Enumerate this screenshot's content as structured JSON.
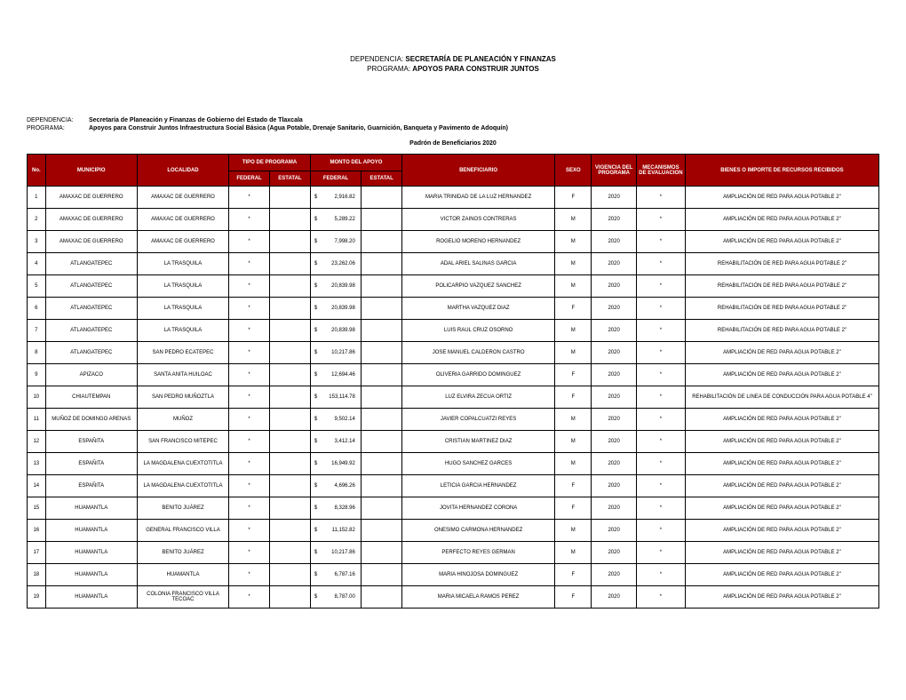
{
  "header": {
    "dependencia_label": "DEPENDENCIA:",
    "dependencia_value": "SECRETARÍA DE PLANEACIÓN Y FINANZAS",
    "programa_label": "PROGRAMA:",
    "programa_value": "APOYOS PARA CONSTRUIR JUNTOS"
  },
  "meta": {
    "dependencia_k": "DEPENDENCIA:",
    "dependencia_v": "Secretaría de Planeación y Finanzas de Gobierno del Estado de Tlaxcala",
    "programa_k": "PROGRAMA:",
    "programa_v": "Apoyos para Construir Juntos Infraestructura Social Básica (Agua Potable, Drenaje Sanitario, Guarnición, Banqueta y Pavimento de Adoquín)",
    "padron": "Padrón de Beneficiarios 2020"
  },
  "columns": {
    "no": "No.",
    "municipio": "MUNICIPIO",
    "localidad": "LOCALIDAD",
    "tipo_programa": "TIPO DE PROGRAMA",
    "monto_apoyo": "MONTO DEL APOYO",
    "federal": "FEDERAL",
    "estatal": "ESTATAL",
    "beneficiario": "BENEFICIARIO",
    "sexo": "SEXO",
    "vigencia": "VIGENCIA DEL PROGRAMA",
    "mecanismos": "MECANISMOS DE EVALUACION",
    "bienes": "BIENES O IMPORTE DE RECURSOS RECIBIDOS"
  },
  "currency": "$",
  "rows": [
    {
      "n": "1",
      "mun": "AMAXAC DE GUERRERO",
      "loc": "AMAXAC DE GUERRERO",
      "fed": "*",
      "mfed": "2,916.82",
      "ben": "MARIA TRINIDAD DE LA LUZ HERNANDEZ",
      "sx": "F",
      "vig": "2020",
      "mec": "*",
      "bien": "AMPLIACIÓN DE RED PARA AGUA POTABLE 2\""
    },
    {
      "n": "2",
      "mun": "AMAXAC DE GUERRERO",
      "loc": "AMAXAC DE GUERRERO",
      "fed": "*",
      "mfed": "5,289.22",
      "ben": "VICTOR ZAINOS CONTRERAS",
      "sx": "M",
      "vig": "2020",
      "mec": "*",
      "bien": "AMPLIACIÓN DE RED PARA AGUA POTABLE 2\""
    },
    {
      "n": "3",
      "mun": "AMAXAC DE GUERRERO",
      "loc": "AMAXAC DE GUERRERO",
      "fed": "*",
      "mfed": "7,998.20",
      "ben": "ROGELIO MORENO HERNANDEZ",
      "sx": "M",
      "vig": "2020",
      "mec": "*",
      "bien": "AMPLIACIÓN DE RED PARA AGUA POTABLE 2\""
    },
    {
      "n": "4",
      "mun": "ATLANGATEPEC",
      "loc": "LA TRASQUILA",
      "fed": "*",
      "mfed": "23,262.06",
      "ben": "ADAL ARIEL SALINAS GARCIA",
      "sx": "M",
      "vig": "2020",
      "mec": "*",
      "bien": "REHABILITACIÓN DE RED PARA AGUA POTABLE 2\""
    },
    {
      "n": "5",
      "mun": "ATLANGATEPEC",
      "loc": "LA TRASQUILA",
      "fed": "*",
      "mfed": "20,839.98",
      "ben": "POLICARPIO  VAZQUEZ SANCHEZ",
      "sx": "M",
      "vig": "2020",
      "mec": "*",
      "bien": "REHABILITACIÓN DE RED PARA AGUA POTABLE 2\""
    },
    {
      "n": "6",
      "mun": "ATLANGATEPEC",
      "loc": "LA TRASQUILA",
      "fed": "*",
      "mfed": "20,839.98",
      "ben": "MARTHA VAZQUEZ DIAZ",
      "sx": "F",
      "vig": "2020",
      "mec": "*",
      "bien": "REHABILITACIÓN DE RED PARA AGUA POTABLE 2\""
    },
    {
      "n": "7",
      "mun": "ATLANGATEPEC",
      "loc": "LA TRASQUILA",
      "fed": "*",
      "mfed": "20,839.98",
      "ben": "LUIS RAUL CRUZ OSORNO",
      "sx": "M",
      "vig": "2020",
      "mec": "*",
      "bien": "REHABILITACIÓN DE RED PARA AGUA POTABLE 2\""
    },
    {
      "n": "8",
      "mun": "ATLANGATEPEC",
      "loc": "SAN PEDRO ECATEPEC",
      "fed": "*",
      "mfed": "10,217.86",
      "ben": "JOSE MANUEL CALDERON CASTRO",
      "sx": "M",
      "vig": "2020",
      "mec": "*",
      "bien": "AMPLIACIÓN DE RED PARA AGUA POTABLE 2\""
    },
    {
      "n": "9",
      "mun": "APIZACO",
      "loc": "SANTA ANITA HUILOAC",
      "fed": "*",
      "mfed": "12,694.46",
      "ben": "OLIVERIA GARRIDO DOMINGUEZ",
      "sx": "F",
      "vig": "2020",
      "mec": "*",
      "bien": "AMPLIACIÓN DE RED PARA AGUA POTABLE 2\""
    },
    {
      "n": "10",
      "mun": "CHIAUTEMPAN",
      "loc": "SAN PEDRO MUÑOZTLA",
      "fed": "*",
      "mfed": "153,114.78",
      "ben": "LUZ ELVIRA ZECUA ORTIZ",
      "sx": "F",
      "vig": "2020",
      "mec": "*",
      "bien": "REHABILITACIÓN DE LINEA DE CONDUCCIÓN PARA AGUA POTABLE 4\""
    },
    {
      "n": "11",
      "mun": "MUÑOZ DE DOMINGO ARENAS",
      "loc": "MUÑOZ",
      "fed": "*",
      "mfed": "9,502.14",
      "ben": "JAVIER COPALCUATZI REYES",
      "sx": "M",
      "vig": "2020",
      "mec": "*",
      "bien": "AMPLIACIÓN DE RED PARA AGUA POTABLE 2\""
    },
    {
      "n": "12",
      "mun": "ESPAÑITA",
      "loc": "SAN FRANCISCO MITEPEC",
      "fed": "*",
      "mfed": "3,412.14",
      "ben": "CRISTIAN MARTINEZ DIAZ",
      "sx": "M",
      "vig": "2020",
      "mec": "*",
      "bien": "AMPLIACIÓN DE RED PARA AGUA POTABLE 2\""
    },
    {
      "n": "13",
      "mun": "ESPAÑITA",
      "loc": "LA MAGDALENA CUEXTOTITLA",
      "fed": "*",
      "mfed": "16,949.92",
      "ben": "HUGO SANCHEZ GARCES",
      "sx": "M",
      "vig": "2020",
      "mec": "*",
      "bien": "AMPLIACIÓN DE RED PARA AGUA POTABLE 2\""
    },
    {
      "n": "14",
      "mun": "ESPAÑITA",
      "loc": "LA MAGDALENA CUEXTOTITLA",
      "fed": "*",
      "mfed": "4,696.26",
      "ben": "LETICIA GARCIA HERNANDEZ",
      "sx": "F",
      "vig": "2020",
      "mec": "*",
      "bien": "AMPLIACIÓN DE RED PARA AGUA POTABLE 2\""
    },
    {
      "n": "15",
      "mun": "HUAMANTLA",
      "loc": "BENITO JUÁREZ",
      "fed": "*",
      "mfed": "8,328.96",
      "ben": "JOVITA HERNANDEZ CORONA",
      "sx": "F",
      "vig": "2020",
      "mec": "*",
      "bien": "AMPLIACIÓN DE RED PARA AGUA POTABLE 2\""
    },
    {
      "n": "16",
      "mun": "HUAMANTLA",
      "loc": "GENERAL FRANCISCO VILLA",
      "fed": "*",
      "mfed": "11,152.82",
      "ben": "ONESIMO CARMONA HERNANDEZ",
      "sx": "M",
      "vig": "2020",
      "mec": "*",
      "bien": "AMPLIACIÓN DE RED PARA AGUA POTABLE 2\""
    },
    {
      "n": "17",
      "mun": "HUAMANTLA",
      "loc": "BENITO JUÁREZ",
      "fed": "*",
      "mfed": "10,217.86",
      "ben": "PERFECTO REYES GERMAN",
      "sx": "M",
      "vig": "2020",
      "mec": "*",
      "bien": "AMPLIACIÓN DE RED PARA AGUA POTABLE 2\""
    },
    {
      "n": "18",
      "mun": "HUAMANTLA",
      "loc": "HUAMANTLA",
      "fed": "*",
      "mfed": "6,787.16",
      "ben": "MARIA HINOJOSA DOMINGUEZ",
      "sx": "F",
      "vig": "2020",
      "mec": "*",
      "bien": "AMPLIACIÓN DE RED PARA AGUA POTABLE 2\""
    },
    {
      "n": "19",
      "mun": "HUAMANTLA",
      "loc": "COLONIA FRANCISCO VILLA TECOAC",
      "fed": "*",
      "mfed": "8,787.00",
      "ben": "MARIA MICAELA RAMOS PEREZ",
      "sx": "F",
      "vig": "2020",
      "mec": "*",
      "bien": "AMPLIACIÓN DE RED PARA AGUA POTABLE 2\""
    }
  ],
  "style": {
    "header_bg": "#a00000",
    "header_fg": "#ffffff",
    "border": "#000000",
    "page_bg": "#ffffff"
  }
}
